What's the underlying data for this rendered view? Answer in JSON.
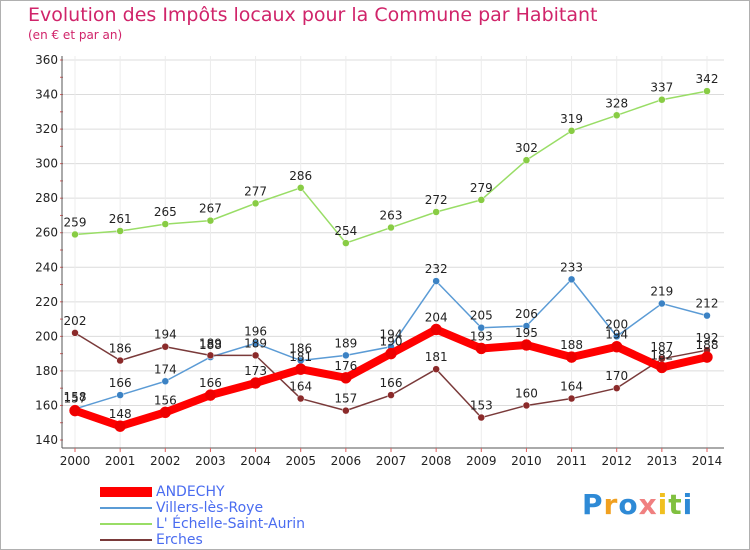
{
  "header": {
    "title": "Evolution des Impôts locaux pour la Commune par Habitant",
    "subtitle": "(en € et par an)"
  },
  "chart_data": {
    "type": "line",
    "title": "Evolution des Impôts locaux pour la Commune par Habitant",
    "subtitle": "(en € et par an)",
    "xlabel": "",
    "ylabel": "",
    "x": [
      "2000",
      "2001",
      "2002",
      "2003",
      "2004",
      "2005",
      "2006",
      "2007",
      "2008",
      "2009",
      "2010",
      "2011",
      "2012",
      "2013",
      "2014"
    ],
    "ylim": [
      140,
      360
    ],
    "yticks": [
      140,
      160,
      180,
      200,
      220,
      240,
      260,
      280,
      300,
      320,
      340,
      360
    ],
    "grid": true,
    "legend_position": "bottom-left",
    "series": [
      {
        "name": "ANDECHY",
        "color": "#ff0000",
        "values": [
          157,
          148,
          156,
          166,
          173,
          181,
          176,
          190,
          204,
          193,
          195,
          188,
          194,
          182,
          188
        ],
        "labels": [
          "157",
          "148",
          "156",
          "166",
          "173",
          "181",
          "176",
          "190",
          "204",
          "193",
          "195",
          "188",
          "194",
          "182",
          "188"
        ]
      },
      {
        "name": "Villers-lès-Roye",
        "color": "#5b9bd5",
        "values": [
          158,
          166,
          174,
          188,
          196,
          186,
          189,
          194,
          232,
          205,
          206,
          233,
          200,
          219,
          212
        ],
        "labels": [
          "158",
          "166",
          "174",
          "188",
          "196",
          "186",
          "189",
          "194",
          "232",
          "205",
          "206",
          "233",
          "200",
          "219",
          "212"
        ]
      },
      {
        "name": "L' Échelle-Saint-Aurin",
        "color": "#99dd66",
        "values": [
          259,
          261,
          265,
          267,
          277,
          286,
          254,
          263,
          272,
          279,
          302,
          319,
          328,
          337,
          342
        ],
        "labels": [
          "259",
          "261",
          "265",
          "267",
          "277",
          "286",
          "254",
          "263",
          "272",
          "279",
          "302",
          "319",
          "328",
          "337",
          "342"
        ]
      },
      {
        "name": "Erches",
        "color": "#7a3a3a",
        "values": [
          202,
          186,
          194,
          189,
          189,
          164,
          157,
          166,
          181,
          153,
          160,
          164,
          170,
          187,
          192
        ],
        "labels": [
          "202",
          "186",
          "194",
          "189",
          "189",
          "164",
          "157",
          "166",
          "181",
          "153",
          "160",
          "164",
          "170",
          "187",
          "192"
        ]
      }
    ]
  },
  "logo": {
    "text": "Proxiti",
    "letter_colors": [
      "#2e8ad6",
      "#f0a020",
      "#2e8ad6",
      "#f08080",
      "#f0c020",
      "#80c040",
      "#2e8ad6"
    ]
  }
}
